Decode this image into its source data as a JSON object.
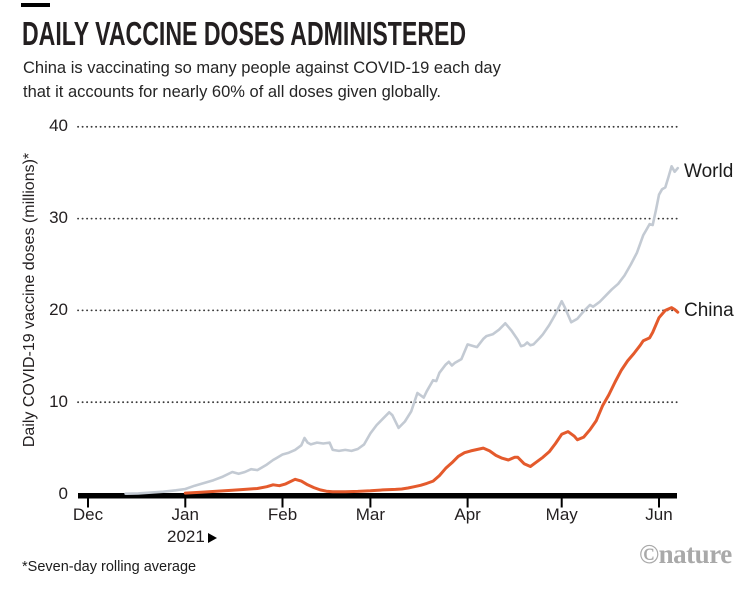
{
  "chart_data": {
    "type": "line",
    "title": "DAILY VACCINE DOSES ADMINISTERED",
    "subtitle_lines": [
      "China is vaccinating so many people against COVID-19 each day",
      "that it accounts for nearly 60% of all doses given globally."
    ],
    "ylabel": "Daily COVID-19 vaccine doses (millions)*",
    "xlabel": "",
    "ylim": [
      0,
      40
    ],
    "y_ticks": [
      0,
      10,
      20,
      30,
      40
    ],
    "grid": "dotted horizontal gridlines at 10, 20, 30, 40",
    "legend_position": "labels at right end of each line",
    "x_unit": "days since 1 Dec 2020",
    "x_ticks": [
      {
        "label": "Dec",
        "day": 0
      },
      {
        "label": "Jan",
        "day": 31
      },
      {
        "label": "Feb",
        "day": 62
      },
      {
        "label": "Mar",
        "day": 90
      },
      {
        "label": "Apr",
        "day": 121
      },
      {
        "label": "May",
        "day": 151
      },
      {
        "label": "Jun",
        "day": 182
      }
    ],
    "year_annotation": "2021",
    "axis_color": "#000000",
    "series": [
      {
        "name": "World",
        "color": "#c3cad3",
        "points": [
          [
            12,
            0.03
          ],
          [
            16,
            0.07
          ],
          [
            20,
            0.15
          ],
          [
            24,
            0.25
          ],
          [
            28,
            0.4
          ],
          [
            31,
            0.55
          ],
          [
            34,
            0.9
          ],
          [
            37,
            1.2
          ],
          [
            40,
            1.5
          ],
          [
            43,
            1.9
          ],
          [
            46,
            2.4
          ],
          [
            48,
            2.2
          ],
          [
            50,
            2.4
          ],
          [
            52,
            2.7
          ],
          [
            54,
            2.6
          ],
          [
            57,
            3.2
          ],
          [
            59,
            3.7
          ],
          [
            60,
            3.9
          ],
          [
            62,
            4.3
          ],
          [
            64,
            4.5
          ],
          [
            66,
            4.8
          ],
          [
            68,
            5.3
          ],
          [
            69,
            6.1
          ],
          [
            70,
            5.6
          ],
          [
            71,
            5.4
          ],
          [
            73,
            5.6
          ],
          [
            75,
            5.5
          ],
          [
            77,
            5.6
          ],
          [
            78,
            4.8
          ],
          [
            80,
            4.7
          ],
          [
            82,
            4.8
          ],
          [
            84,
            4.7
          ],
          [
            86,
            4.9
          ],
          [
            88,
            5.4
          ],
          [
            90,
            6.6
          ],
          [
            92,
            7.5
          ],
          [
            94,
            8.2
          ],
          [
            96,
            8.9
          ],
          [
            97,
            8.6
          ],
          [
            99,
            7.2
          ],
          [
            101,
            7.9
          ],
          [
            103,
            9.0
          ],
          [
            105,
            11.0
          ],
          [
            107,
            10.5
          ],
          [
            108,
            11.2
          ],
          [
            110,
            12.4
          ],
          [
            111,
            12.3
          ],
          [
            112,
            13.2
          ],
          [
            114,
            14.1
          ],
          [
            115,
            14.4
          ],
          [
            116,
            14.0
          ],
          [
            117,
            14.3
          ],
          [
            119,
            14.7
          ],
          [
            121,
            16.3
          ],
          [
            123,
            16.1
          ],
          [
            124,
            16.0
          ],
          [
            126,
            16.9
          ],
          [
            127,
            17.2
          ],
          [
            129,
            17.4
          ],
          [
            131,
            17.9
          ],
          [
            133,
            18.6
          ],
          [
            135,
            17.8
          ],
          [
            137,
            16.8
          ],
          [
            138,
            16.1
          ],
          [
            139,
            16.2
          ],
          [
            140,
            16.5
          ],
          [
            141,
            16.2
          ],
          [
            142,
            16.3
          ],
          [
            144,
            17.0
          ],
          [
            145,
            17.4
          ],
          [
            147,
            18.4
          ],
          [
            149,
            19.6
          ],
          [
            151,
            21.0
          ],
          [
            152,
            20.3
          ],
          [
            154,
            18.7
          ],
          [
            156,
            19.1
          ],
          [
            158,
            19.9
          ],
          [
            160,
            20.6
          ],
          [
            161,
            20.4
          ],
          [
            163,
            20.9
          ],
          [
            165,
            21.6
          ],
          [
            167,
            22.3
          ],
          [
            169,
            22.9
          ],
          [
            171,
            23.8
          ],
          [
            173,
            25.0
          ],
          [
            175,
            26.3
          ],
          [
            177,
            28.2
          ],
          [
            178,
            28.8
          ],
          [
            179,
            29.4
          ],
          [
            180,
            29.3
          ],
          [
            181,
            30.9
          ],
          [
            182,
            32.6
          ],
          [
            183,
            33.2
          ],
          [
            184,
            33.4
          ],
          [
            185,
            34.5
          ],
          [
            186,
            35.7
          ],
          [
            187,
            35.1
          ],
          [
            188,
            35.5
          ]
        ]
      },
      {
        "name": "China",
        "color": "#e45a2c",
        "points": [
          [
            31,
            0.1
          ],
          [
            36,
            0.2
          ],
          [
            41,
            0.3
          ],
          [
            46,
            0.4
          ],
          [
            50,
            0.5
          ],
          [
            54,
            0.6
          ],
          [
            57,
            0.8
          ],
          [
            59,
            1.0
          ],
          [
            61,
            0.9
          ],
          [
            63,
            1.1
          ],
          [
            66,
            1.6
          ],
          [
            68,
            1.4
          ],
          [
            70,
            1.0
          ],
          [
            72,
            0.7
          ],
          [
            74,
            0.45
          ],
          [
            76,
            0.3
          ],
          [
            78,
            0.25
          ],
          [
            82,
            0.25
          ],
          [
            86,
            0.28
          ],
          [
            90,
            0.35
          ],
          [
            94,
            0.45
          ],
          [
            98,
            0.5
          ],
          [
            100,
            0.55
          ],
          [
            102,
            0.65
          ],
          [
            104,
            0.8
          ],
          [
            106,
            0.95
          ],
          [
            108,
            1.15
          ],
          [
            110,
            1.4
          ],
          [
            112,
            2.0
          ],
          [
            114,
            2.8
          ],
          [
            116,
            3.4
          ],
          [
            118,
            4.1
          ],
          [
            120,
            4.5
          ],
          [
            122,
            4.7
          ],
          [
            124,
            4.85
          ],
          [
            126,
            5.0
          ],
          [
            128,
            4.7
          ],
          [
            130,
            4.2
          ],
          [
            132,
            3.9
          ],
          [
            134,
            3.7
          ],
          [
            136,
            4.0
          ],
          [
            137,
            4.0
          ],
          [
            139,
            3.3
          ],
          [
            141,
            3.0
          ],
          [
            143,
            3.5
          ],
          [
            145,
            4.0
          ],
          [
            147,
            4.6
          ],
          [
            149,
            5.5
          ],
          [
            151,
            6.5
          ],
          [
            153,
            6.8
          ],
          [
            155,
            6.3
          ],
          [
            156,
            5.9
          ],
          [
            158,
            6.2
          ],
          [
            160,
            7.0
          ],
          [
            162,
            8.0
          ],
          [
            164,
            9.6
          ],
          [
            166,
            10.8
          ],
          [
            168,
            12.2
          ],
          [
            170,
            13.5
          ],
          [
            172,
            14.5
          ],
          [
            174,
            15.3
          ],
          [
            176,
            16.2
          ],
          [
            177,
            16.7
          ],
          [
            179,
            17.0
          ],
          [
            180,
            17.6
          ],
          [
            182,
            19.2
          ],
          [
            184,
            20.0
          ],
          [
            186,
            20.3
          ],
          [
            187,
            20.1
          ],
          [
            188,
            19.8
          ]
        ]
      }
    ],
    "footnote": "*Seven-day rolling average",
    "watermark": "©nature"
  }
}
